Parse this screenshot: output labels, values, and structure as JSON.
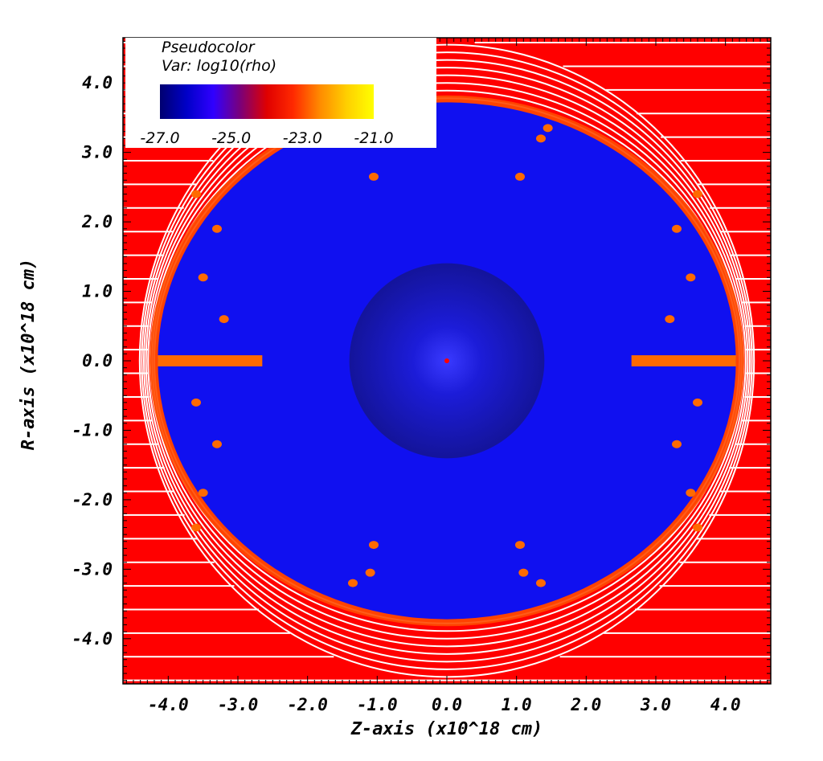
{
  "chart_data": {
    "type": "heatmap",
    "plot_kind": "Pseudocolor",
    "variable": "Var: log10(rho)",
    "xlabel": "Z-axis  (x10^18 cm)",
    "ylabel": "R-axis  (x10^18 cm)",
    "xlim": [
      -4.65,
      4.65
    ],
    "ylim": [
      -4.65,
      4.65
    ],
    "x_ticks": [
      -4.0,
      -3.0,
      -2.0,
      -1.0,
      0.0,
      1.0,
      2.0,
      3.0,
      4.0
    ],
    "x_tick_labels": [
      "-4.0",
      "-3.0",
      "-2.0",
      "-1.0",
      "0.0",
      "1.0",
      "2.0",
      "3.0",
      "4.0"
    ],
    "y_ticks": [
      4.0,
      3.0,
      2.0,
      1.0,
      0.0,
      -1.0,
      -2.0,
      -3.0,
      -4.0
    ],
    "y_tick_labels": [
      "4.0",
      "3.0",
      "2.0",
      "1.0",
      "0.0",
      "-1.0",
      "-2.0",
      "-3.0",
      "-4.0"
    ],
    "colorbar": {
      "min": -27.0,
      "max": -21.0,
      "ticks": [
        -27.0,
        -25.0,
        -23.0,
        -21.0
      ],
      "tick_labels": [
        "-27.0",
        "-25.0",
        "-23.0",
        "-21.0"
      ],
      "colors": [
        "#000070",
        "#0000c8",
        "#3000ff",
        "#7a007a",
        "#e00000",
        "#ff2a00",
        "#ff8c00",
        "#ffd000",
        "#ffff00"
      ]
    },
    "field": {
      "ambient_log10_rho": -23.0,
      "cavity_log10_rho": -25.3,
      "shell_log10_rho": -22.4,
      "inner_sphere_radius": 1.4,
      "inner_sphere_log10_rho": -26.2,
      "core_log10_rho": -22.6,
      "cavity_half_width_z": 4.15,
      "cavity_half_height_r": 3.72,
      "bow_shock_half_width_z": 4.3,
      "bow_shock_half_height_r": 4.6
    },
    "colors": {
      "ambient": "#ff0000",
      "shell": "#ff4a00",
      "cavity": "#1010f0",
      "inner_sphere": "#1818a8",
      "clumps": "#ff6a00",
      "contours": "#ffffff"
    }
  }
}
